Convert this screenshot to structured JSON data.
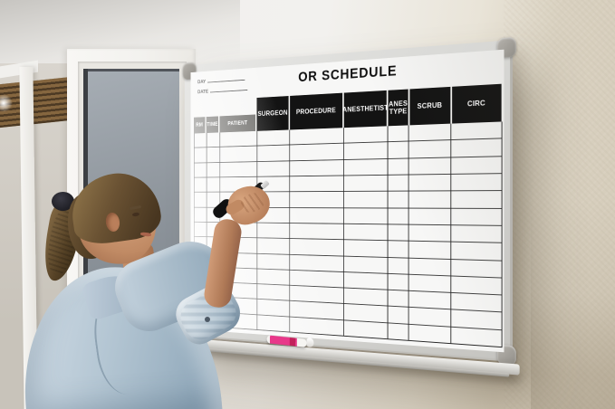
{
  "whiteboard": {
    "title": "OR SCHEDULE",
    "day_label": "DAY",
    "date_label": "DATE",
    "columns": [
      {
        "label": "RM",
        "header": "gray"
      },
      {
        "label": "TIME",
        "header": "gray"
      },
      {
        "label": "PATIENT",
        "header": "gray"
      },
      {
        "label": "SURGEON",
        "header": "black"
      },
      {
        "label": "PROCEDURE",
        "header": "black"
      },
      {
        "label": "ANESTHETIST",
        "header": "black"
      },
      {
        "label": "ANES TYPE",
        "header": "black"
      },
      {
        "label": "SCRUB",
        "header": "black"
      },
      {
        "label": "CIRC",
        "header": "black"
      }
    ],
    "row_count": 13,
    "colors": {
      "header_black": "#131313",
      "header_gray": "#6f6e6b",
      "grid_line": "#242424",
      "frame_silver": "#d8d7d4",
      "corner_cap": "#9a9690"
    }
  },
  "objects": {
    "tray_marker_color": "#e8388a",
    "hand_marker_color": "#1a1a1a"
  }
}
